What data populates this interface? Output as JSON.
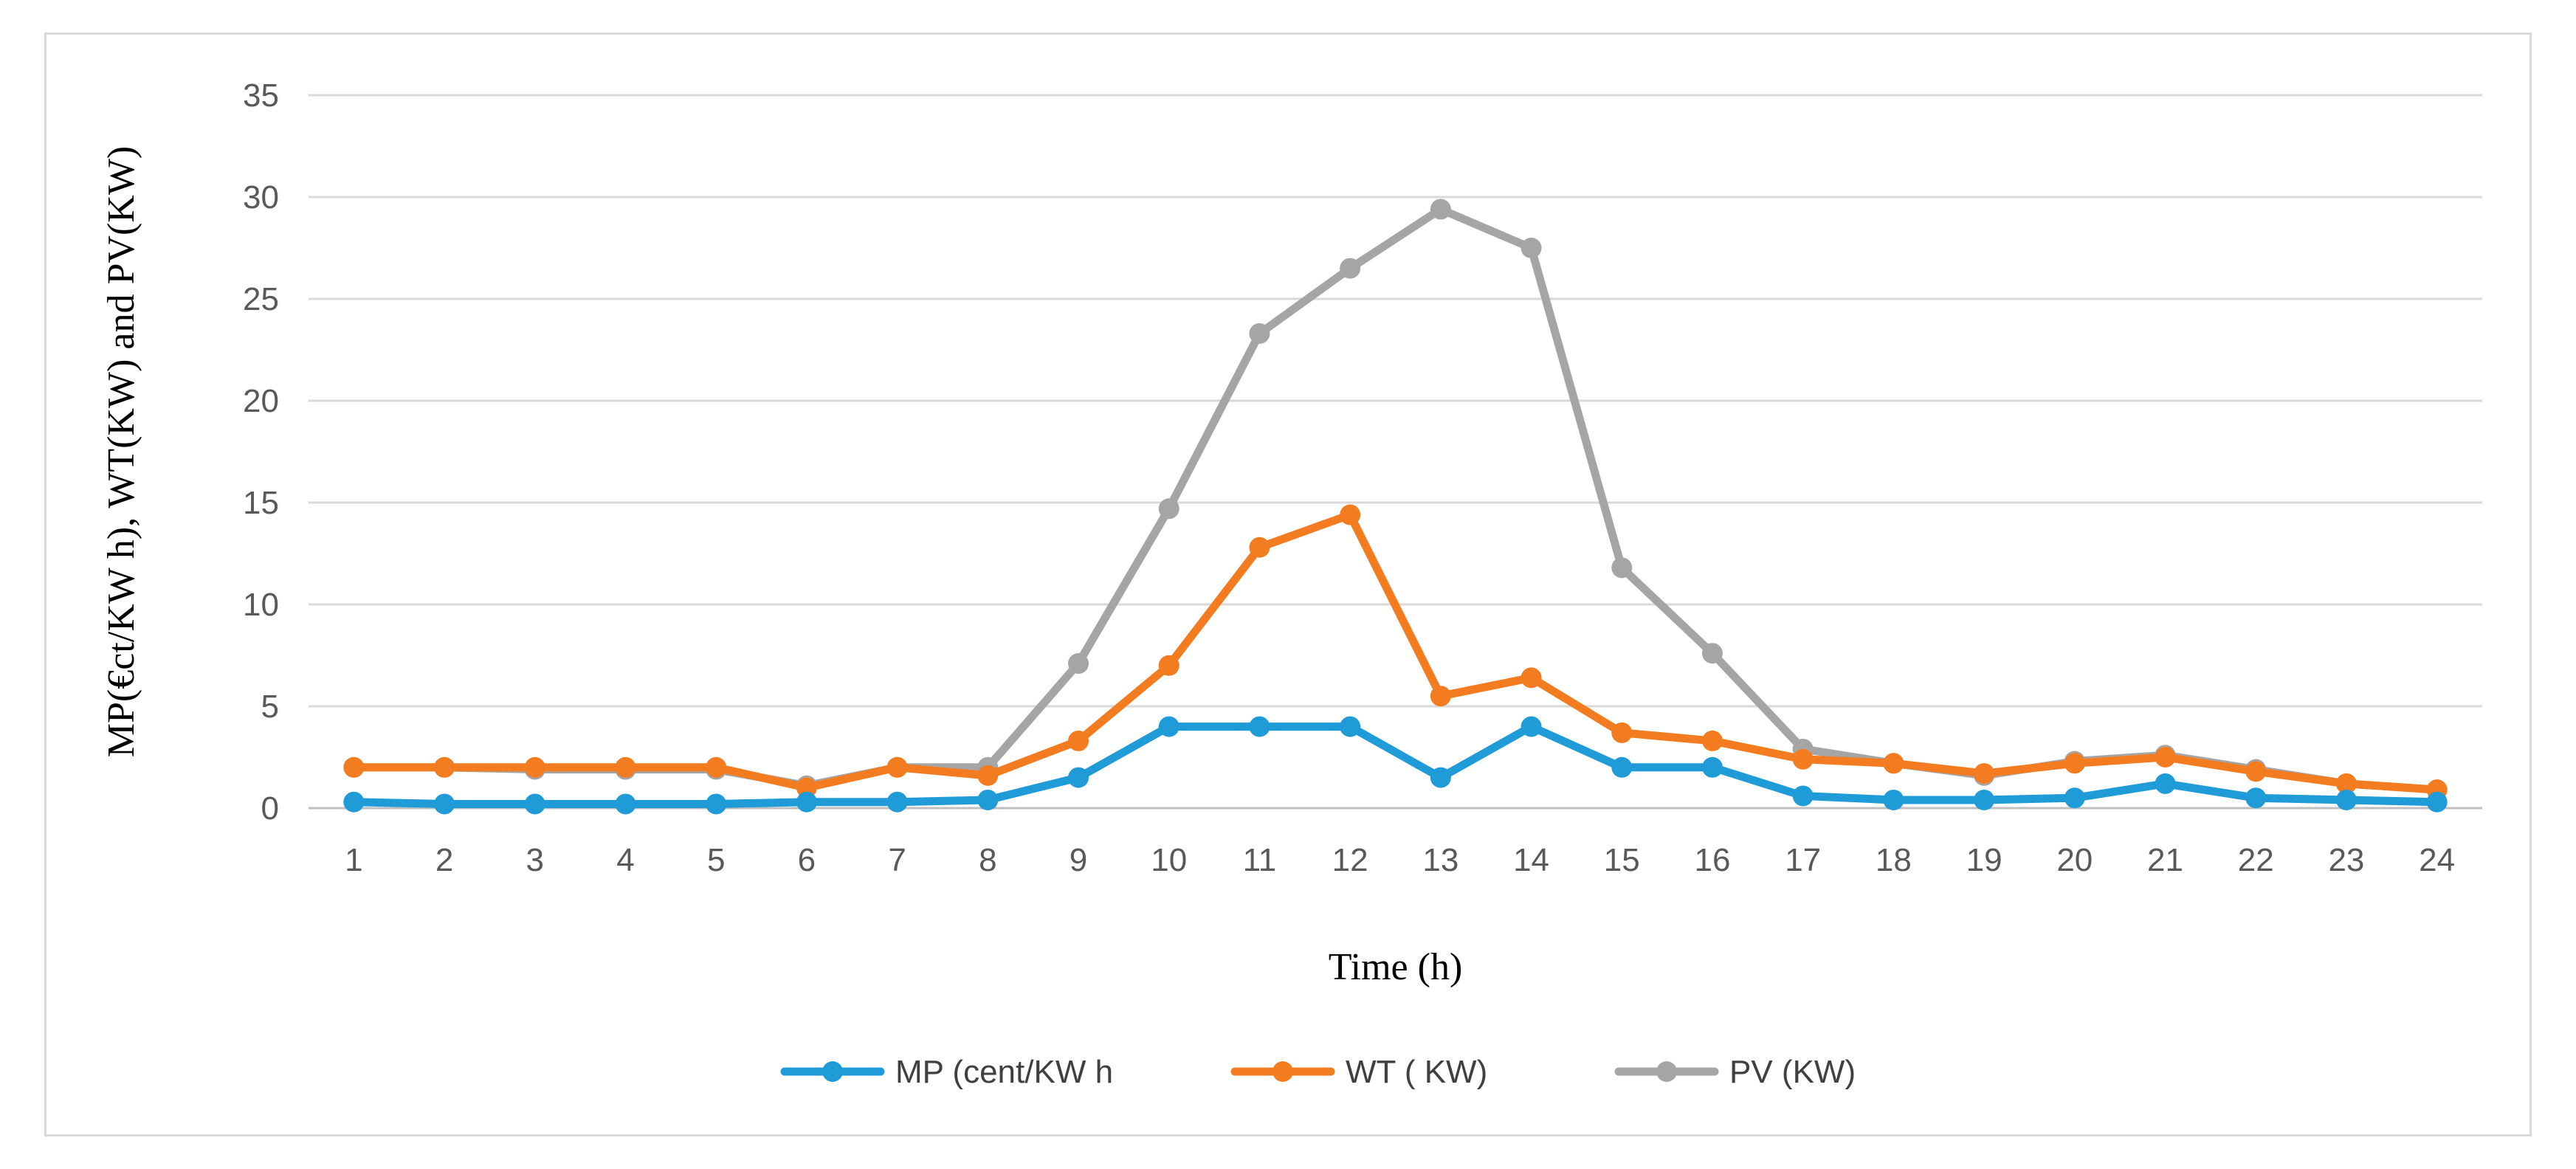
{
  "chart_data": {
    "type": "line",
    "title": "",
    "xlabel": "Time (h)",
    "ylabel": "MP(€ct/KW h), WT(KW) and PV(KW)",
    "ylim": [
      0,
      35
    ],
    "yticks": [
      0,
      5,
      10,
      15,
      20,
      25,
      30,
      35
    ],
    "grid": true,
    "legend_position": "bottom",
    "categories": [
      "1",
      "2",
      "3",
      "4",
      "5",
      "6",
      "7",
      "8",
      "9",
      "10",
      "11",
      "12",
      "13",
      "14",
      "15",
      "16",
      "17",
      "18",
      "19",
      "20",
      "21",
      "22",
      "23",
      "24"
    ],
    "series": [
      {
        "name": "MP (cent/KW h",
        "color": "#1f9bd7",
        "values": [
          0.3,
          0.2,
          0.2,
          0.2,
          0.2,
          0.3,
          0.3,
          0.4,
          1.5,
          4.0,
          4.0,
          4.0,
          1.5,
          4.0,
          2.0,
          2.0,
          0.6,
          0.4,
          0.4,
          0.5,
          1.2,
          0.5,
          0.4,
          0.3
        ]
      },
      {
        "name": "WT ( KW)",
        "color": "#f47c20",
        "values": [
          2.0,
          2.0,
          2.0,
          2.0,
          2.0,
          1.0,
          2.0,
          1.6,
          3.3,
          7.0,
          12.8,
          14.4,
          5.5,
          6.4,
          3.7,
          3.3,
          2.4,
          2.2,
          1.7,
          2.2,
          2.5,
          1.8,
          1.2,
          0.9
        ]
      },
      {
        "name": "PV (KW)",
        "color": "#a5a5a5",
        "values": [
          2.0,
          2.0,
          1.9,
          1.9,
          1.9,
          1.1,
          2.0,
          2.0,
          7.1,
          14.7,
          23.3,
          26.5,
          29.4,
          27.5,
          11.8,
          7.6,
          2.9,
          2.2,
          1.6,
          2.3,
          2.6,
          1.9,
          1.2,
          0.9
        ]
      }
    ]
  }
}
